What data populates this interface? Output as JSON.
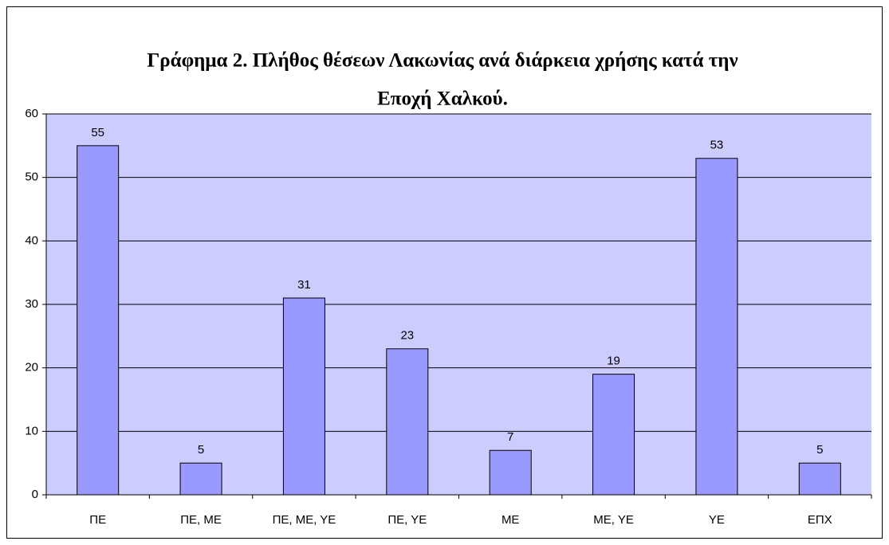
{
  "chart_data": {
    "type": "bar",
    "title": [
      "Γράφημα 2. Πλήθος θέσεων Λακωνίας ανά διάρκεια χρήσης κατά την",
      "Εποχή Χαλκού."
    ],
    "categories": [
      "ΠΕ",
      "ΠΕ, ΜΕ",
      "ΠΕ, ΜΕ, ΥΕ",
      "ΠΕ, ΥΕ",
      "ΜΕ",
      "ΜΕ, ΥΕ",
      "ΥΕ",
      "ΕΠΧ"
    ],
    "values": [
      55,
      5,
      31,
      23,
      7,
      19,
      53,
      5
    ],
    "color": "#9999ff",
    "plot_background": "#ccccff",
    "ylim": [
      0,
      60
    ],
    "yticks": [
      0,
      10,
      20,
      30,
      40,
      50,
      60
    ],
    "grid": true
  }
}
